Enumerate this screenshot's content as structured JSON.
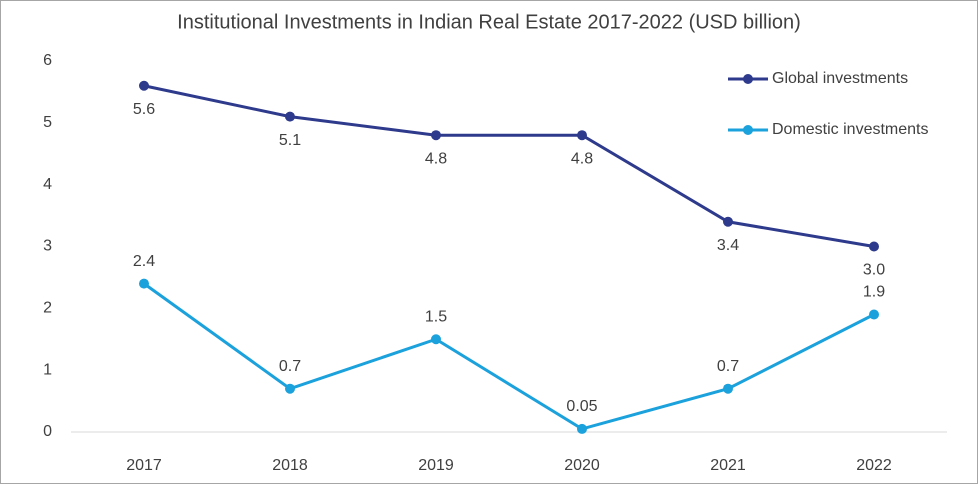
{
  "chart_data": {
    "type": "line",
    "title": "Institutional Investments in Indian Real Estate 2017-2022 (USD billion)",
    "categories": [
      "2017",
      "2018",
      "2019",
      "2020",
      "2021",
      "2022"
    ],
    "series": [
      {
        "name": "Global investments",
        "color": "#2e3a8c",
        "values": [
          5.6,
          5.1,
          4.8,
          4.8,
          3.4,
          3.0
        ],
        "value_labels": [
          "5.6",
          "5.1",
          "4.8",
          "4.8",
          "3.4",
          "3.0"
        ],
        "label_position": "below"
      },
      {
        "name": "Domestic investments",
        "color": "#1ba1dc",
        "values": [
          2.4,
          0.7,
          1.5,
          0.05,
          0.7,
          1.9
        ],
        "label_position": "above"
      }
    ],
    "ylim": [
      0,
      6
    ],
    "yticks": [
      0,
      1,
      2,
      3,
      4,
      5,
      6
    ],
    "grid": false,
    "legend": "top-right"
  }
}
